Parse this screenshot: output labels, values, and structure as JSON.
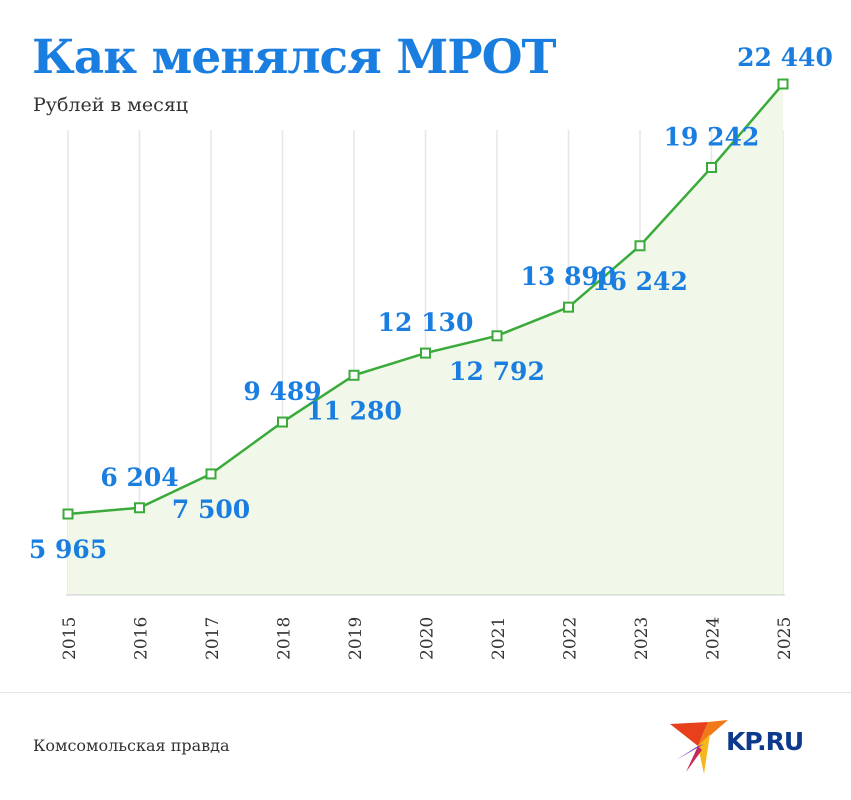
{
  "header": {
    "title": "Как менялся МРОТ",
    "subtitle": "Рублей в месяц"
  },
  "footer": {
    "source": "Комсомольская правда",
    "logo_text": "KP.RU"
  },
  "colors": {
    "title": "#1a7ee0",
    "line": "#3aaa3a",
    "area": "#f1f8ea",
    "labels": "#1a7ee0",
    "logo": "#0d3a8c"
  },
  "chart_data": {
    "type": "line",
    "title": "Как менялся МРОТ",
    "ylabel": "Рублей в месяц",
    "categories": [
      "2015",
      "2016",
      "2017",
      "2018",
      "2019",
      "2020",
      "2021",
      "2022",
      "2023",
      "2024",
      "2025"
    ],
    "values": [
      5965,
      6204,
      7500,
      9489,
      11280,
      12130,
      12792,
      13890,
      16242,
      19242,
      22440
    ],
    "data_labels": [
      "5 965",
      "6 204",
      "7 500",
      "9 489",
      "11 280",
      "12 130",
      "12 792",
      "13 890",
      "16 242",
      "19 242",
      "22 440"
    ],
    "grid": "vertical",
    "area_fill": true
  }
}
